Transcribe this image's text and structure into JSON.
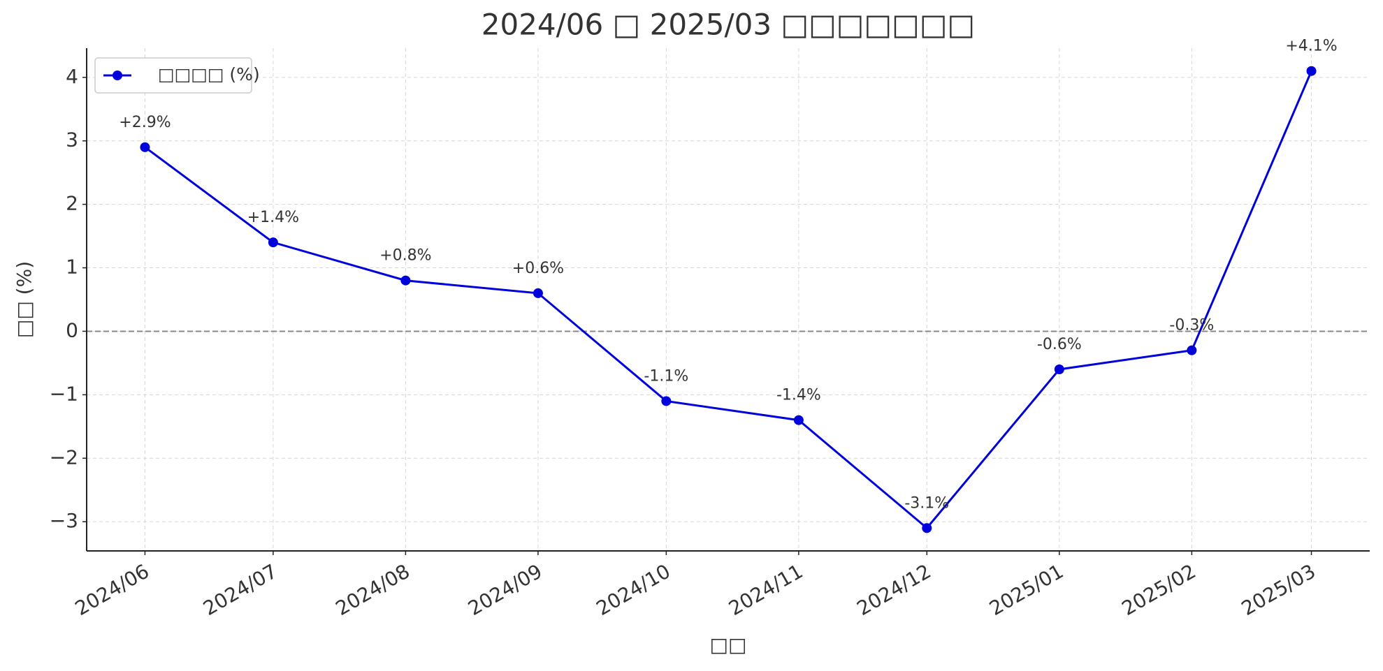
{
  "chart_data": {
    "type": "line",
    "title": "2024/06 □ 2025/03 □□□□□□□",
    "x_label": "□□",
    "y_label": "□□ (%)",
    "x": [
      "2024/06",
      "2024/07",
      "2024/08",
      "2024/09",
      "2024/10",
      "2024/11",
      "2024/12",
      "2025/01",
      "2025/02",
      "2025/03"
    ],
    "series": [
      {
        "name": "□□□□ (%)",
        "color": "#0000dd",
        "values": [
          2.9,
          1.4,
          0.8,
          0.6,
          -1.1,
          -1.4,
          -3.1,
          -0.6,
          -0.3,
          4.1
        ],
        "value_labels": [
          "+2.9%",
          "+1.4%",
          "+0.8%",
          "+0.6%",
          "-1.1%",
          "-1.4%",
          "-3.1%",
          "-0.6%",
          "-0.3%",
          "+4.1%"
        ]
      }
    ],
    "ylim": [
      -3.46,
      4.46
    ],
    "yticks": [
      {
        "value": -3,
        "label": "−3"
      },
      {
        "value": -2,
        "label": "−2"
      },
      {
        "value": -1,
        "label": "−1"
      },
      0,
      1,
      2,
      3,
      4
    ],
    "hline": 0,
    "grid": true,
    "legend": "upper left"
  }
}
